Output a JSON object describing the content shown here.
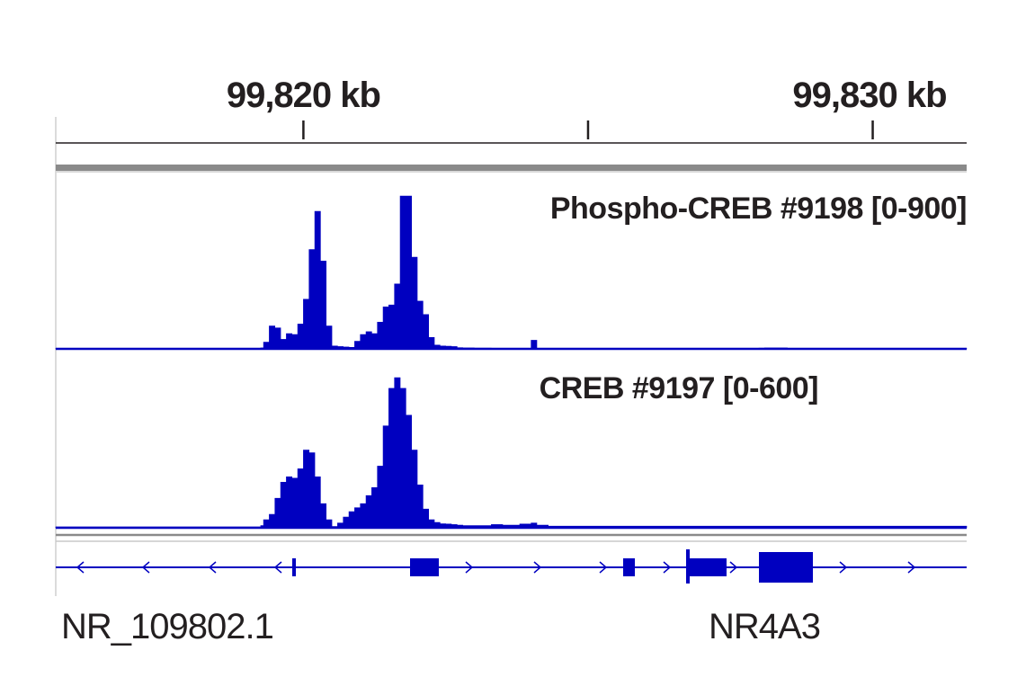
{
  "chart_data": {
    "type": "area",
    "ruler": {
      "ticks": [
        {
          "position_kb": 99820,
          "label": "99,820 kb"
        },
        {
          "position_kb": 99825,
          "label": ""
        },
        {
          "position_kb": 99830,
          "label": "99,830 kb"
        }
      ],
      "xlim_kb": [
        99815.65,
        99831.65
      ]
    },
    "tracks": [
      {
        "name": "Phospho-CREB #9198 [0-900]",
        "ylim": [
          0,
          900
        ],
        "color": "#0000c0",
        "x_kb": [
          99815.65,
          99819.25,
          99819.3,
          99819.4,
          99819.5,
          99819.6,
          99819.7,
          99819.8,
          99819.9,
          99820.0,
          99820.1,
          99820.2,
          99820.3,
          99820.4,
          99820.5,
          99820.6,
          99820.7,
          99820.8,
          99820.9,
          99821.0,
          99821.1,
          99821.2,
          99821.3,
          99821.4,
          99821.5,
          99821.6,
          99821.7,
          99821.8,
          99821.9,
          99822.0,
          99822.1,
          99822.2,
          99822.3,
          99822.4,
          99822.5,
          99822.6,
          99822.7,
          99822.8,
          99823.0,
          99823.3,
          99823.8,
          99824.0,
          99824.1,
          99824.3,
          99824.5,
          99828.0,
          99828.1,
          99828.5,
          99828.6,
          99831.65
        ],
        "values": [
          2,
          5,
          35,
          120,
          110,
          50,
          80,
          75,
          130,
          260,
          520,
          720,
          460,
          120,
          15,
          12,
          10,
          8,
          40,
          75,
          90,
          80,
          140,
          220,
          230,
          340,
          800,
          800,
          480,
          250,
          180,
          60,
          20,
          15,
          14,
          12,
          6,
          5,
          4,
          2,
          3,
          45,
          2,
          3,
          2,
          4,
          5,
          3,
          2,
          2
        ]
      },
      {
        "name": "CREB #9197 [0-600]",
        "ylim": [
          0,
          600
        ],
        "color": "#0000c0",
        "x_kb": [
          99815.65,
          99819.25,
          99819.3,
          99819.4,
          99819.5,
          99819.6,
          99819.7,
          99819.8,
          99819.9,
          99820.0,
          99820.1,
          99820.2,
          99820.3,
          99820.4,
          99820.5,
          99820.6,
          99820.7,
          99820.8,
          99820.9,
          99821.0,
          99821.1,
          99821.2,
          99821.3,
          99821.4,
          99821.5,
          99821.6,
          99821.7,
          99821.8,
          99821.9,
          99822.0,
          99822.1,
          99822.2,
          99822.3,
          99822.4,
          99822.5,
          99822.6,
          99822.7,
          99822.8,
          99823.0,
          99823.3,
          99823.5,
          99823.8,
          99824.0,
          99824.1,
          99824.3,
          99831.65
        ],
        "values": [
          3,
          8,
          30,
          50,
          110,
          170,
          190,
          185,
          220,
          290,
          280,
          190,
          90,
          30,
          5,
          18,
          40,
          60,
          75,
          90,
          120,
          150,
          230,
          380,
          520,
          560,
          520,
          420,
          290,
          160,
          70,
          30,
          20,
          15,
          14,
          12,
          10,
          8,
          8,
          12,
          10,
          14,
          18,
          10,
          6,
          5
        ]
      }
    ],
    "genes": [
      {
        "name": "NR_109802.1",
        "strand": "-"
      },
      {
        "name": "NR4A3",
        "strand": "+"
      }
    ]
  }
}
